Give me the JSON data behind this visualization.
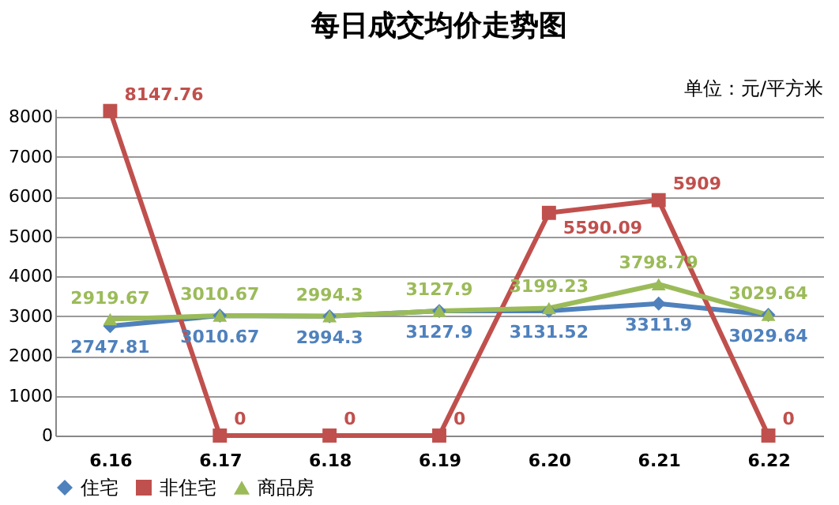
{
  "chart_data": {
    "type": "line",
    "title": "每日成交均价走势图",
    "annotations": [
      "单位：元/平方米"
    ],
    "categories": [
      "6.16",
      "6.17",
      "6.18",
      "6.19",
      "6.20",
      "6.21",
      "6.22"
    ],
    "series": [
      {
        "name": "住宅",
        "color": "#4f81bd",
        "marker": "diamond",
        "values": [
          2747.81,
          3010.67,
          2994.3,
          3127.9,
          3131.52,
          3311.9,
          3029.64
        ]
      },
      {
        "name": "非住宅",
        "color": "#c0504d",
        "marker": "square",
        "values": [
          8147.76,
          0,
          0,
          0,
          5590.09,
          5909,
          0
        ]
      },
      {
        "name": "商品房",
        "color": "#9bbb59",
        "marker": "triangle",
        "values": [
          2919.67,
          3010.67,
          2994.3,
          3127.9,
          3199.23,
          3798.79,
          3029.64
        ]
      }
    ],
    "ylim": [
      0,
      8200
    ],
    "yticks": [
      0,
      1000,
      2000,
      3000,
      4000,
      5000,
      6000,
      7000,
      8000
    ],
    "grid": "y",
    "legend": "bottom",
    "data_labels": true
  }
}
